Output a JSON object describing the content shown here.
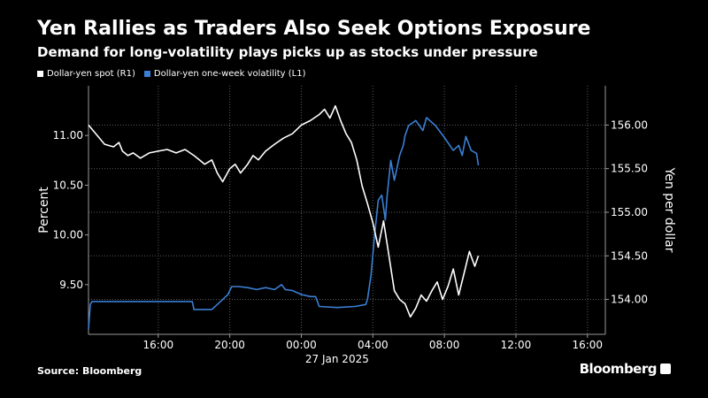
{
  "header": {
    "title": "Yen Rallies as Traders Also Seek Options Exposure",
    "subtitle": "Demand for long-volatility plays picks up as stocks under pressure"
  },
  "legend": {
    "items": [
      {
        "label": "Dollar-yen spot (R1)",
        "color": "#ffffff"
      },
      {
        "label": "Dollar-yen one-week volatility (L1)",
        "color": "#3a7fd5"
      }
    ]
  },
  "footer": {
    "source": "Source: Bloomberg",
    "brand": "Bloomberg",
    "brand_mark": "♀"
  },
  "chart_data": {
    "type": "line",
    "xlabel": "27 Jan 2025",
    "x_ticks": [
      "16:00",
      "20:00",
      "00:00",
      "04:00",
      "08:00",
      "12:00",
      "16:00"
    ],
    "x_tick_hours": [
      16,
      20,
      24,
      28,
      32,
      36,
      40
    ],
    "x_range_hours": [
      12.1,
      41
    ],
    "left_axis": {
      "label": "Percent",
      "ylim": [
        9.0,
        11.5
      ],
      "ticks": [
        9.5,
        10.0,
        10.5,
        11.0
      ],
      "tick_labels": [
        "9.50",
        "10.00",
        "10.50",
        "11.00"
      ]
    },
    "right_axis": {
      "label": "Yen per dollar",
      "ylim": [
        153.6,
        156.45
      ],
      "ticks": [
        154.0,
        154.5,
        155.0,
        155.5,
        156.0
      ],
      "tick_labels": [
        "154.00",
        "154.50",
        "155.00",
        "155.50",
        "156.00"
      ]
    },
    "grid": true,
    "series": [
      {
        "name": "Dollar-yen one-week volatility (L1)",
        "axis": "left",
        "color": "#3a7fd5",
        "x_hours": [
          12.1,
          12.2,
          12.3,
          13.0,
          14.0,
          15.0,
          16.0,
          17.0,
          17.9,
          18.0,
          19.0,
          19.9,
          20.1,
          20.5,
          21.0,
          21.5,
          22.0,
          22.5,
          22.9,
          23.1,
          23.5,
          24.0,
          24.5,
          24.8,
          25.0,
          26.0,
          27.0,
          27.6,
          27.7,
          27.9,
          28.1,
          28.3,
          28.5,
          28.7,
          28.8,
          29.0,
          29.2,
          29.5,
          29.7,
          29.8,
          30.0,
          30.4,
          30.8,
          31.0,
          31.5,
          32.0,
          32.5,
          32.8,
          33.0,
          33.2,
          33.5,
          33.8,
          33.9
        ],
        "values": [
          9.05,
          9.3,
          9.33,
          9.33,
          9.33,
          9.33,
          9.33,
          9.33,
          9.33,
          9.25,
          9.25,
          9.4,
          9.48,
          9.48,
          9.47,
          9.45,
          9.47,
          9.45,
          9.5,
          9.45,
          9.44,
          9.4,
          9.38,
          9.38,
          9.28,
          9.27,
          9.28,
          9.3,
          9.35,
          9.6,
          10.0,
          10.35,
          10.4,
          10.15,
          10.4,
          10.75,
          10.55,
          10.8,
          10.9,
          11.0,
          11.1,
          11.15,
          11.05,
          11.18,
          11.1,
          10.98,
          10.85,
          10.9,
          10.8,
          10.99,
          10.85,
          10.82,
          10.7
        ]
      },
      {
        "name": "Dollar-yen spot (R1)",
        "axis": "right",
        "color": "#ffffff",
        "x_hours": [
          12.1,
          13.0,
          13.5,
          13.8,
          14.0,
          14.3,
          14.6,
          15.0,
          15.5,
          16.0,
          16.5,
          17.0,
          17.5,
          18.0,
          18.3,
          18.6,
          19.0,
          19.3,
          19.6,
          20.0,
          20.3,
          20.6,
          21.0,
          21.3,
          21.6,
          22.0,
          22.5,
          23.0,
          23.5,
          24.0,
          24.5,
          25.0,
          25.3,
          25.6,
          25.9,
          26.2,
          26.5,
          26.8,
          27.1,
          27.4,
          27.7,
          28.0,
          28.3,
          28.6,
          28.9,
          29.2,
          29.5,
          29.8,
          30.1,
          30.4,
          30.7,
          31.0,
          31.3,
          31.6,
          31.9,
          32.2,
          32.5,
          32.8,
          33.1,
          33.4,
          33.7,
          33.9
        ],
        "values": [
          156.0,
          155.78,
          155.75,
          155.8,
          155.7,
          155.65,
          155.68,
          155.62,
          155.68,
          155.7,
          155.72,
          155.68,
          155.72,
          155.65,
          155.6,
          155.55,
          155.6,
          155.45,
          155.35,
          155.5,
          155.55,
          155.45,
          155.55,
          155.65,
          155.6,
          155.7,
          155.78,
          155.85,
          155.9,
          156.0,
          156.05,
          156.12,
          156.18,
          156.08,
          156.22,
          156.05,
          155.9,
          155.8,
          155.6,
          155.3,
          155.1,
          154.88,
          154.6,
          154.9,
          154.5,
          154.1,
          154.0,
          153.95,
          153.8,
          153.9,
          154.05,
          153.98,
          154.1,
          154.2,
          154.0,
          154.15,
          154.35,
          154.05,
          154.3,
          154.55,
          154.38,
          154.5
        ]
      }
    ]
  }
}
